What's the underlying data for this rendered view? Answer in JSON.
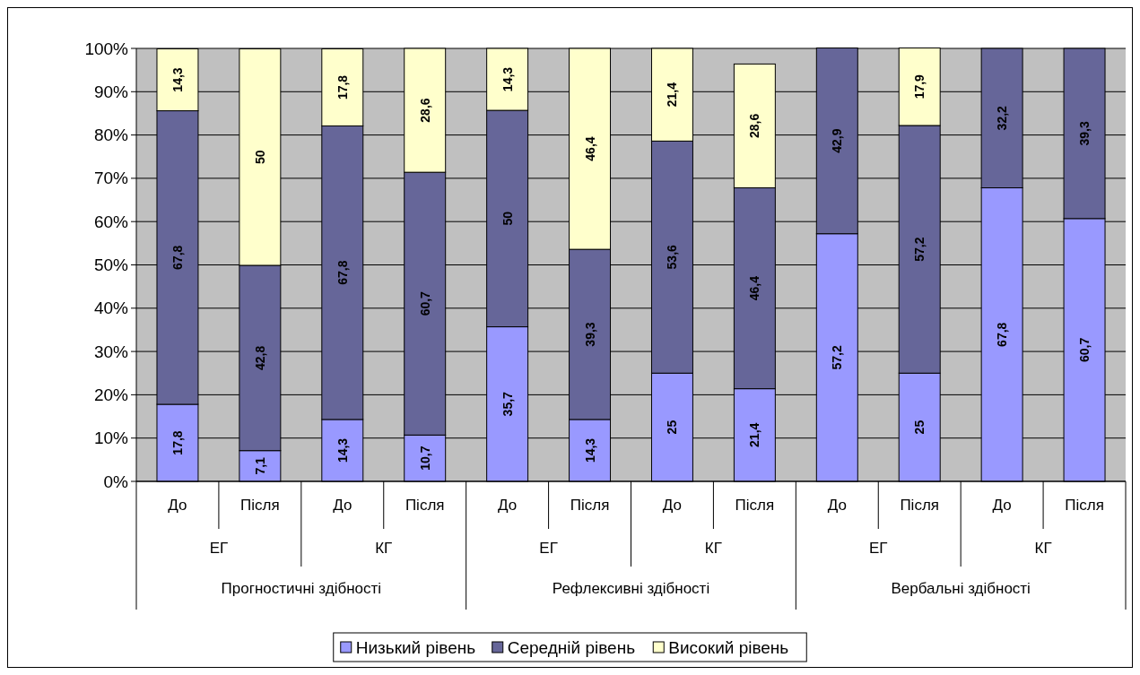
{
  "chart_data": {
    "type": "bar",
    "stacked": true,
    "categories": [
      "До",
      "Після",
      "До",
      "Після",
      "До",
      "Після",
      "До",
      "Після",
      "До",
      "Після",
      "До",
      "Після"
    ],
    "series": [
      {
        "name": "Низький рівень",
        "color": "#9999ff",
        "values": [
          17.8,
          7.1,
          14.3,
          10.7,
          35.7,
          14.3,
          25,
          21.4,
          57.2,
          25,
          67.8,
          60.7
        ],
        "value_labels": [
          "17,8",
          "7,1",
          "14,3",
          "10,7",
          "35,7",
          "14,3",
          "25",
          "21,4",
          "57,2",
          "25",
          "67,8",
          "60,7"
        ]
      },
      {
        "name": "Середній рівень",
        "color": "#666699",
        "values": [
          67.8,
          42.8,
          67.8,
          60.7,
          50,
          39.3,
          53.6,
          46.4,
          42.9,
          57.2,
          32.2,
          39.3
        ],
        "value_labels": [
          "67,8",
          "42,8",
          "67,8",
          "60,7",
          "50",
          "39,3",
          "53,6",
          "46,4",
          "42,9",
          "57,2",
          "32,2",
          "39,3"
        ]
      },
      {
        "name": "Високий рівень",
        "color": "#ffffcc",
        "values": [
          14.3,
          50,
          17.8,
          28.6,
          14.3,
          46.4,
          21.4,
          28.6,
          null,
          17.9,
          null,
          null
        ],
        "value_labels": [
          "14,3",
          "50",
          "17,8",
          "28,6",
          "14,3",
          "46,4",
          "21,4",
          "28,6",
          null,
          "17,9",
          null,
          null
        ]
      }
    ],
    "ylim": [
      0,
      100
    ],
    "yticks": [
      {
        "value": 0,
        "label": "0%"
      },
      {
        "value": 10,
        "label": "10%"
      },
      {
        "value": 20,
        "label": "20%"
      },
      {
        "value": 30,
        "label": "30%"
      },
      {
        "value": 40,
        "label": "40%"
      },
      {
        "value": 50,
        "label": "50%"
      },
      {
        "value": 60,
        "label": "60%"
      },
      {
        "value": 70,
        "label": "70%"
      },
      {
        "value": 80,
        "label": "80%"
      },
      {
        "value": 90,
        "label": "90%"
      },
      {
        "value": 100,
        "label": "100%"
      }
    ],
    "grid": "y",
    "legend": "bottom",
    "annotations": [
      "ЕГ",
      "КГ",
      "ЕГ",
      "КГ",
      "ЕГ",
      "КГ",
      "Прогностичні здібності",
      "Рефлексивні здібності",
      "Вербальні здібності"
    ]
  }
}
